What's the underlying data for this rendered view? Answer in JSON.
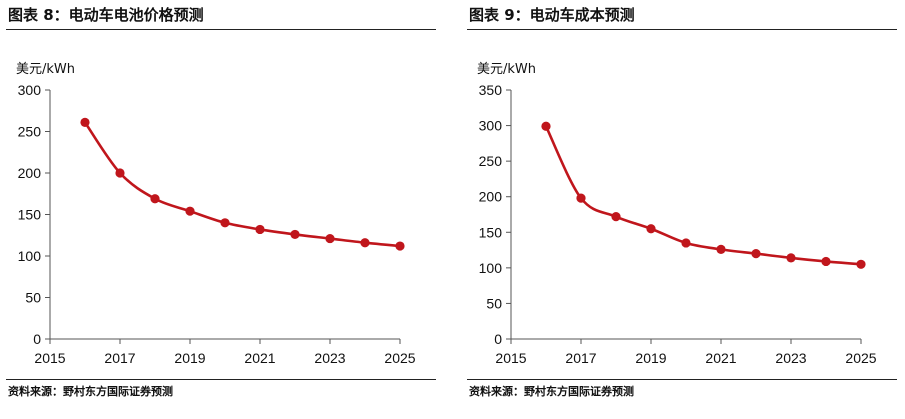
{
  "charts": [
    {
      "figure_title": "图表 8：电动车电池价格预测",
      "unit_label": "美元/kWh",
      "source": "资料来源：野村东方国际证券预测",
      "series_color": "#c0161c"
    },
    {
      "figure_title": "图表 9：电动车成本预测",
      "unit_label": "美元/kWh",
      "source": "资料来源：野村东方国际证券预测",
      "series_color": "#c0161c"
    }
  ],
  "chart_data": [
    {
      "type": "line",
      "title": "图表 8：电动车电池价格预测",
      "ylabel": "美元/kWh",
      "xlabel": "",
      "xlim": [
        2015,
        2025
      ],
      "ylim": [
        0,
        300
      ],
      "x_ticks": [
        2015,
        2017,
        2019,
        2021,
        2023,
        2025
      ],
      "y_ticks": [
        0,
        50,
        100,
        150,
        200,
        250,
        300
      ],
      "grid": false,
      "legend": "none",
      "series": [
        {
          "x": [
            2016,
            2017,
            2018,
            2019,
            2020,
            2021,
            2022,
            2023,
            2024,
            2025
          ],
          "values": [
            261,
            200,
            169,
            154,
            140,
            132,
            126,
            121,
            116,
            112
          ]
        }
      ]
    },
    {
      "type": "line",
      "title": "图表 9：电动车成本预测",
      "ylabel": "美元/kWh",
      "xlabel": "",
      "xlim": [
        2015,
        2025
      ],
      "ylim": [
        0,
        350
      ],
      "x_ticks": [
        2015,
        2017,
        2019,
        2021,
        2023,
        2025
      ],
      "y_ticks": [
        0,
        50,
        100,
        150,
        200,
        250,
        300,
        350
      ],
      "grid": false,
      "legend": "none",
      "series": [
        {
          "x": [
            2016,
            2017,
            2018,
            2019,
            2020,
            2021,
            2022,
            2023,
            2024,
            2025
          ],
          "values": [
            299,
            198,
            172,
            155,
            135,
            126,
            120,
            114,
            109,
            105
          ]
        }
      ]
    }
  ]
}
